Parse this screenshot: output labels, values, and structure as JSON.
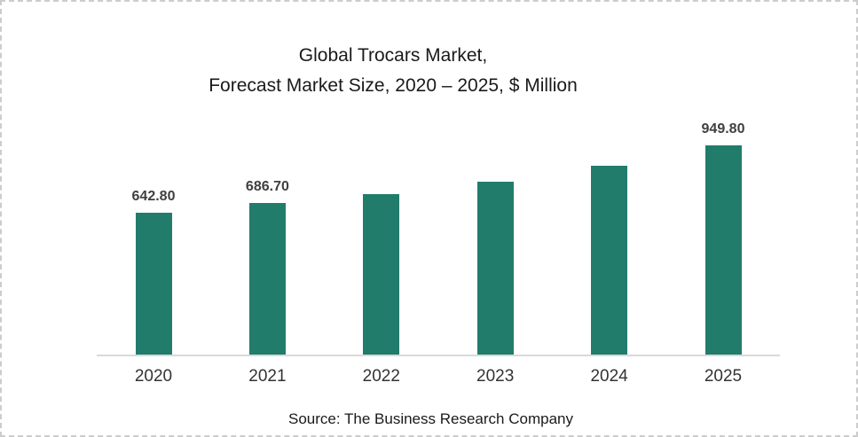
{
  "page": {
    "background": "#ffffff",
    "frame_border_color": "#cccccc"
  },
  "chart": {
    "title_line1": "Global Trocars Market,",
    "title_line2": "Forecast Market Size, 2020 – 2025, $ Million",
    "source": "Source: The Business Research Company"
  },
  "chart_data": {
    "type": "bar",
    "title": "Global Trocars Market, Forecast Market Size, 2020 – 2025, $ Million",
    "categories": [
      "2020",
      "2021",
      "2022",
      "2023",
      "2024",
      "2025"
    ],
    "values": [
      642.8,
      686.7,
      727,
      783,
      854,
      949.8
    ],
    "data_labels": [
      "642.80",
      "686.70",
      "",
      "",
      "",
      "949.80"
    ],
    "values_estimated_from_pixels": [
      false,
      false,
      true,
      true,
      true,
      false
    ],
    "xlabel": "",
    "ylabel": "",
    "ylim": [
      0,
      1085
    ],
    "grid": false,
    "legend": false,
    "bar_color": "#217C6C",
    "axis_line_color": "#d9d9d9",
    "data_label_color": "#3f3f3f",
    "tick_label_color": "#333333"
  }
}
